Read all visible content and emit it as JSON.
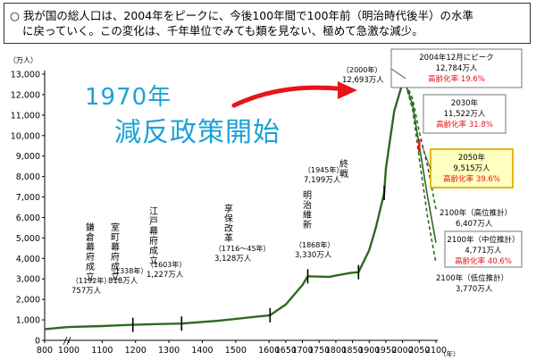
{
  "header": {
    "line1": "○ 我が国の総人口は、2004年をピークに、今後100年間で100年前（明治時代後半）の水準",
    "line2": "に戻っていく。この変化は、千年単位でみても類を見ない、極めて急激な減少。"
  },
  "overlay": {
    "line1": "1970年",
    "line2": "減反政策開始",
    "color": "#1ba3d6"
  },
  "chart_data": {
    "type": "line",
    "title": "",
    "xlabel": "（年）",
    "ylabel": "（万人）",
    "xlim": [
      800,
      2100
    ],
    "ylim": [
      0,
      13000
    ],
    "x_ticks": [
      800,
      1000,
      1100,
      1200,
      1300,
      1400,
      1500,
      1600,
      1650,
      1700,
      1750,
      1800,
      1850,
      1900,
      1950,
      2000,
      2050,
      2100
    ],
    "x_tick_labels": [
      "800",
      "1000",
      "1100",
      "1200",
      "1300",
      "1400",
      "1500",
      "1600",
      "1650",
      "1700",
      "1750",
      "1800",
      "1850",
      "1900",
      "1950",
      "2000",
      "2050",
      "2100"
    ],
    "y_ticks": [
      0,
      1000,
      2000,
      3000,
      4000,
      5000,
      6000,
      7000,
      8000,
      9000,
      10000,
      11000,
      12000,
      13000
    ],
    "y_tick_labels": [
      "0",
      "1,000",
      "2,000",
      "3,000",
      "4,000",
      "5,000",
      "6,000",
      "7,000",
      "8,000",
      "9,000",
      "10,000",
      "11,000",
      "12,000",
      "13,000"
    ],
    "series": [
      {
        "name": "",
        "style": "solid",
        "color": "#2d6a1f",
        "x": [
          800,
          1000,
          1100,
          1192,
          1250,
          1338,
          1450,
          1560,
          1603,
          1650,
          1700,
          1716,
          1780,
          1845,
          1868,
          1900,
          1920,
          1945,
          1950,
          1975,
          2004
        ],
        "y": [
          550,
          650,
          700,
          757,
          790,
          818,
          960,
          1150,
          1227,
          1750,
          2700,
          3128,
          3100,
          3300,
          3330,
          4400,
          5500,
          7199,
          8400,
          11200,
          12784
        ]
      },
      {
        "name": "高位推計",
        "style": "dashed",
        "color": "#2d6a1f",
        "x": [
          2004,
          2030,
          2050,
          2075,
          2100
        ],
        "y": [
          12784,
          11800,
          10200,
          8500,
          6407
        ]
      },
      {
        "name": "中位推計",
        "style": "solid",
        "color": "#2d6a1f",
        "x": [
          2004,
          2030,
          2050,
          2075,
          2100
        ],
        "y": [
          12784,
          11522,
          9515,
          7000,
          4771
        ]
      },
      {
        "name": "低位推計",
        "style": "dashed",
        "color": "#2d6a1f",
        "x": [
          2004,
          2030,
          2050,
          2075,
          2100
        ],
        "y": [
          12784,
          11300,
          8900,
          6000,
          3770
        ]
      }
    ],
    "annotations": [
      {
        "x": 1192,
        "y": 757,
        "label": "鎌倉幕府成立",
        "vertical": true,
        "year": "（1192年）",
        "value": "757万人"
      },
      {
        "x": 1338,
        "y": 818,
        "label": "室町幕府成立",
        "vertical": true,
        "year": "（1338年）",
        "value": "818万人"
      },
      {
        "x": 1603,
        "y": 1227,
        "label": "江戸幕府成立",
        "vertical": true,
        "year": "（1603年）",
        "value": "1,227万人"
      },
      {
        "x": 1716,
        "y": 3128,
        "label": "享保改革",
        "vertical": true,
        "year": "（1716～45年）",
        "value": "3,128万人"
      },
      {
        "x": 1868,
        "y": 3330,
        "label": "明治維新",
        "vertical": true,
        "year": "（1868年）",
        "value": "3,330万人"
      },
      {
        "x": 1945,
        "y": 7199,
        "label": "終戦",
        "vertical": true,
        "year": "（1945年）",
        "value": "7,199万人"
      },
      {
        "x": 2000,
        "y": 12693,
        "label": "",
        "vertical": false,
        "year": "（2000年）",
        "value": "12,693万人"
      }
    ],
    "boxes": [
      {
        "year": "2004年12月にピーク",
        "value": "12,784万人",
        "rate": "高齢化率 19.6%",
        "highlight": false
      },
      {
        "year": "2030年",
        "value": "11,522万人",
        "rate": "高齢化率 31.8%",
        "highlight": false
      },
      {
        "year": "2050年",
        "value": "9,515万人",
        "rate": "高齢化率 39.6%",
        "highlight": true
      },
      {
        "year": "2100年（中位推計）",
        "value": "4,771万人",
        "rate": "高齢化率 40.6%",
        "highlight": false
      }
    ],
    "projection_labels": [
      {
        "year": "2100年（高位推計）",
        "value": "6,407万人"
      },
      {
        "year": "2100年（低位推計）",
        "value": "3,770万人"
      }
    ],
    "colors": {
      "line": "#2d6a1f",
      "rate": "#e8141c",
      "highlight_bg": "#ffffc0",
      "highlight_border": "#e0b000",
      "arrow": "#e8141c"
    },
    "legend": "none",
    "grid": false
  }
}
